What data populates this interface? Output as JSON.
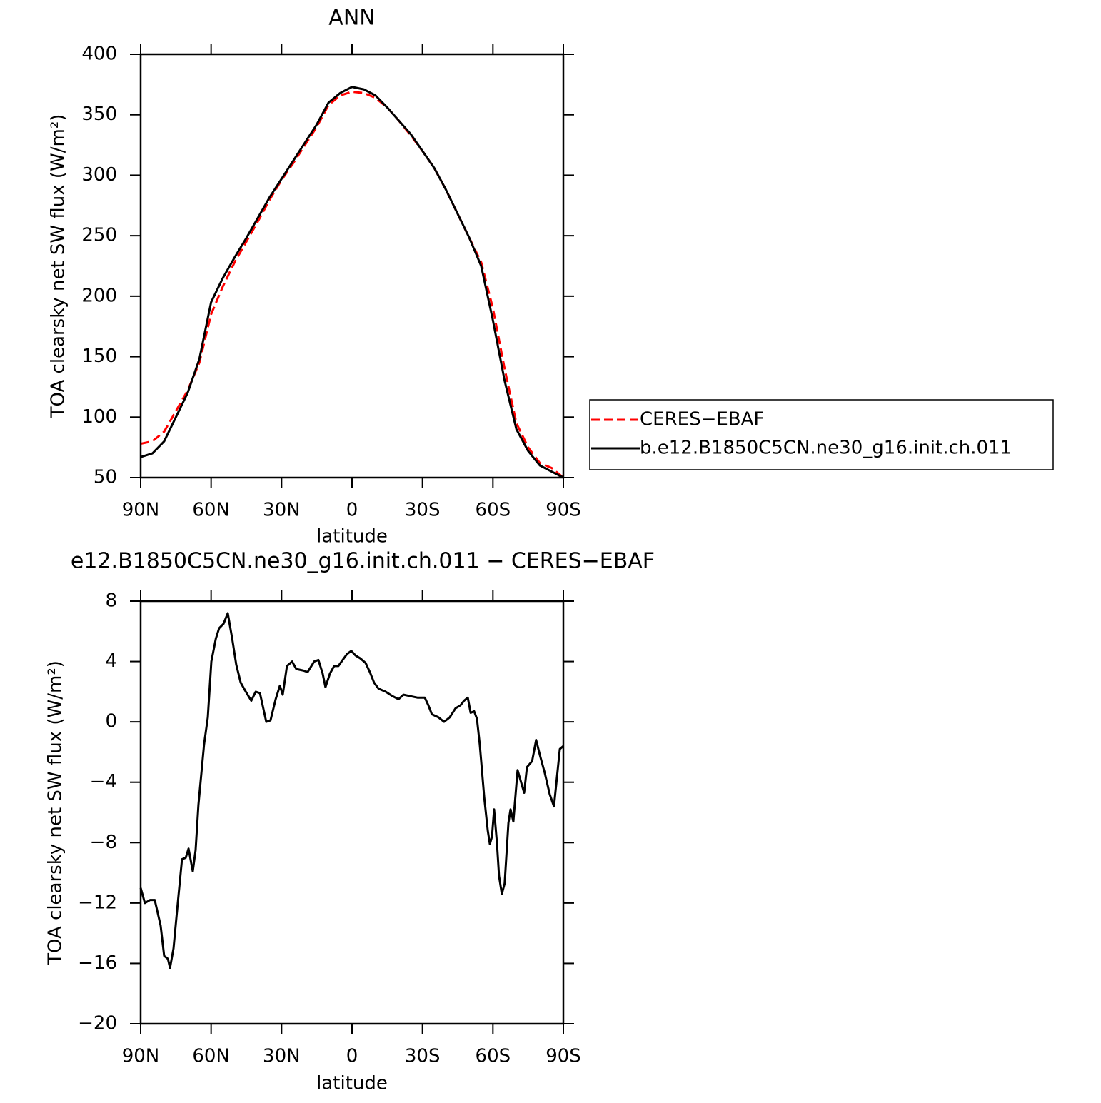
{
  "chart_data": [
    {
      "type": "line",
      "title": "ANN",
      "xlabel": "latitude",
      "ylabel": "TOA clearsky net SW flux (W/m²)",
      "x": [
        90,
        85,
        80,
        75,
        70,
        65,
        60,
        55,
        50,
        45,
        40,
        35,
        30,
        25,
        20,
        15,
        10,
        5,
        0,
        -5,
        -10,
        -15,
        -20,
        -25,
        -30,
        -35,
        -40,
        -45,
        -50,
        -55,
        -60,
        -65,
        -70,
        -75,
        -80,
        -85,
        -90
      ],
      "xlim": [
        90,
        -90
      ],
      "xticks": [
        {
          "value": 90,
          "label": "90N"
        },
        {
          "value": 60,
          "label": "60N"
        },
        {
          "value": 30,
          "label": "30N"
        },
        0,
        {
          "value": -30,
          "label": "30S"
        },
        {
          "value": -60,
          "label": "60S"
        },
        {
          "value": -90,
          "label": "90S"
        }
      ],
      "ylim": [
        50,
        400
      ],
      "yticks": [
        50,
        100,
        150,
        200,
        250,
        300,
        350,
        400
      ],
      "legend": "right",
      "series": [
        {
          "name": "CERES−EBAF",
          "color": "#ff0000",
          "line_style": "dashed",
          "values": [
            78,
            80,
            88,
            105,
            122,
            145,
            185,
            208,
            228,
            245,
            262,
            280,
            296,
            310,
            325,
            340,
            358,
            366,
            369,
            368,
            364,
            356,
            345,
            333,
            320,
            306,
            288,
            268,
            248,
            228,
            190,
            140,
            95,
            75,
            62,
            58,
            50
          ]
        },
        {
          "name": "b.e12.B1850C5CN.ne30_g16.init.ch.011",
          "color": "#000000",
          "line_style": "solid",
          "values": [
            67,
            70,
            80,
            100,
            120,
            148,
            195,
            215,
            232,
            248,
            265,
            282,
            297,
            312,
            327,
            342,
            360,
            368,
            373,
            371,
            366,
            356,
            345,
            334,
            320,
            306,
            288,
            268,
            248,
            225,
            180,
            130,
            90,
            72,
            60,
            55,
            50
          ]
        }
      ]
    },
    {
      "type": "line",
      "title": "e12.B1850C5CN.ne30_g16.init.ch.011 − CERES−EBAF",
      "xlabel": "latitude",
      "ylabel": "TOA clearsky net SW flux (W/m²)",
      "x": [
        90,
        88.2,
        86,
        84,
        81.5,
        80,
        78.4,
        77.5,
        76,
        74.5,
        72.4,
        70.8,
        69.6,
        67.8,
        66.6,
        65.4,
        63,
        61.4,
        59.9,
        58,
        56.6,
        54.7,
        52.9,
        51,
        49.3,
        47.4,
        45.6,
        42.9,
        41,
        39.2,
        36.5,
        34.7,
        32.5,
        30.7,
        29.5,
        27.7,
        25.5,
        23.7,
        20.7,
        18.9,
        16.1,
        14.3,
        12.5,
        11.3,
        9.4,
        7.6,
        5.8,
        4,
        2.1,
        0.3,
        -1.5,
        -3.6,
        -5.8,
        -7.6,
        -9.4,
        -11.3,
        -14.3,
        -17.3,
        -19.8,
        -21.9,
        -24.9,
        -28,
        -31,
        -32.5,
        -34,
        -36.8,
        -39.2,
        -41.6,
        -44.1,
        -46.2,
        -47.7,
        -49.3,
        -50.5,
        -52,
        -53.2,
        -54.4,
        -56.3,
        -57.8,
        -58.7,
        -59.6,
        -60.5,
        -61.7,
        -62.6,
        -63.8,
        -65,
        -66.6,
        -67.5,
        -68.7,
        -70.5,
        -73.3,
        -74.5,
        -76.7,
        -78.4,
        -80,
        -82.1,
        -84.2,
        -86,
        -88.5,
        -90
      ],
      "xlim": [
        90,
        -90
      ],
      "xticks": [
        {
          "value": 90,
          "label": "90N"
        },
        {
          "value": 60,
          "label": "60N"
        },
        {
          "value": 30,
          "label": "30N"
        },
        0,
        {
          "value": -30,
          "label": "30S"
        },
        {
          "value": -60,
          "label": "60S"
        },
        {
          "value": -90,
          "label": "90S"
        }
      ],
      "ylim": [
        -20,
        8
      ],
      "yticks": [
        {
          "value": -20,
          "label": "−20"
        },
        {
          "value": -16,
          "label": "−16"
        },
        {
          "value": -12,
          "label": "−12"
        },
        {
          "value": -8,
          "label": "−8"
        },
        {
          "value": -4,
          "label": "−4"
        },
        0,
        4,
        8
      ],
      "color": "#000000",
      "values": [
        -11,
        -12,
        -11.8,
        -11.8,
        -13.5,
        -15.5,
        -15.7,
        -16.3,
        -15,
        -12.5,
        -9.1,
        -9,
        -8.4,
        -9.9,
        -8.5,
        -5.5,
        -1.5,
        0.3,
        4,
        5.5,
        6.2,
        6.5,
        7.2,
        5.5,
        3.8,
        2.6,
        2.1,
        1.4,
        2,
        1.9,
        0,
        0.1,
        1.5,
        2.4,
        1.8,
        3.7,
        4,
        3.5,
        3.4,
        3.3,
        4,
        4.1,
        3.2,
        2.3,
        3.2,
        3.7,
        3.7,
        4.1,
        4.5,
        4.7,
        4.4,
        4.2,
        3.9,
        3.3,
        2.6,
        2.2,
        2,
        1.7,
        1.5,
        1.8,
        1.7,
        1.6,
        1.6,
        1.1,
        0.5,
        0.3,
        0,
        0.3,
        0.9,
        1.1,
        1.4,
        1.6,
        0.6,
        0.7,
        0.2,
        -1.5,
        -5,
        -7.2,
        -8.1,
        -7.6,
        -5.8,
        -8,
        -10.2,
        -11.4,
        -10.7,
        -6.7,
        -5.8,
        -6.6,
        -3.2,
        -4.7,
        -3,
        -2.6,
        -1.2,
        -2.2,
        -3.4,
        -4.8,
        -5.6,
        -1.8,
        -1.6
      ]
    }
  ]
}
